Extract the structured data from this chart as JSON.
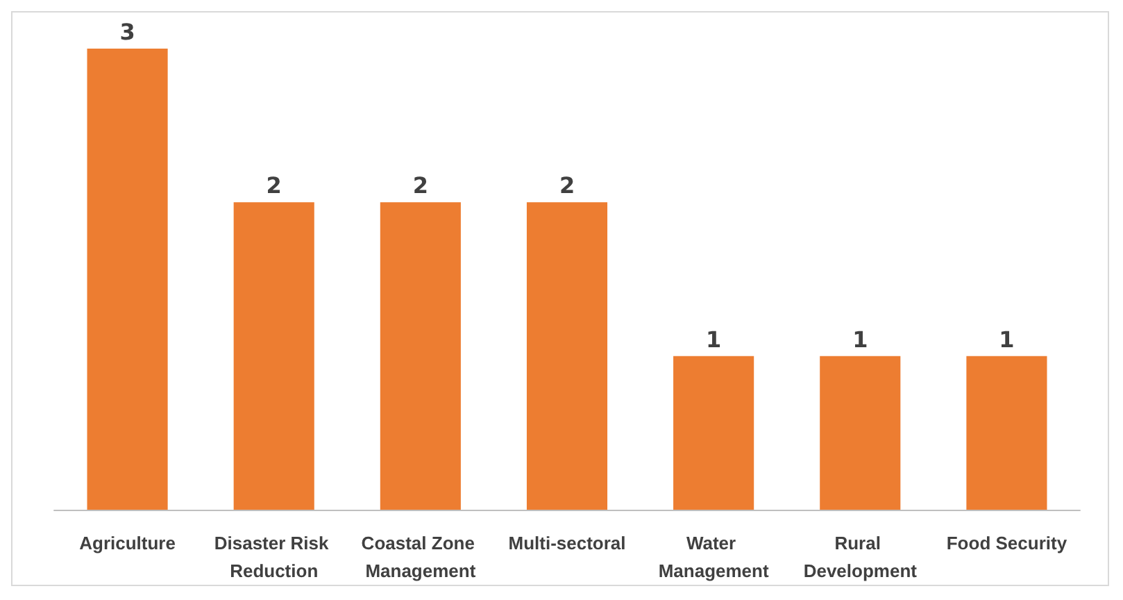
{
  "chart_data": {
    "type": "bar",
    "categories": [
      "Agriculture",
      "Disaster Risk Reduction",
      "Coastal Zone Management",
      "Multi-sectoral",
      "Water Management",
      "Rural Development",
      "Food Security"
    ],
    "values": [
      3,
      2,
      2,
      2,
      1,
      1,
      1
    ],
    "color": "#ed7d31",
    "data_labels": true
  }
}
